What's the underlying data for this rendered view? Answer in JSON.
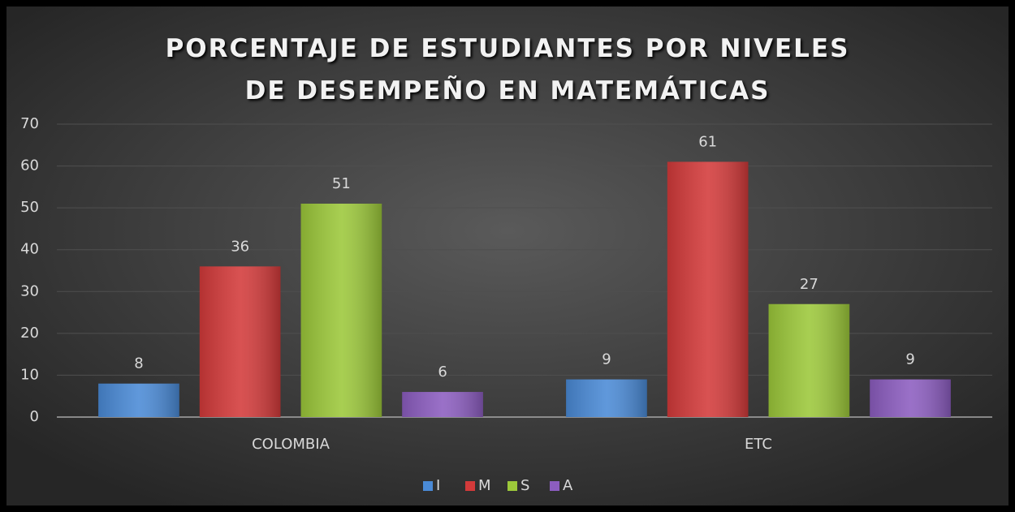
{
  "chart_data": {
    "type": "bar",
    "title": "PORCENTAJE DE ESTUDIANTES POR NIVELES DE DESEMPEÑO EN MATEMÁTICAS",
    "categories": [
      "COLOMBIA",
      "ETC"
    ],
    "series": [
      {
        "name": "I",
        "color": "#4a8ad6",
        "values": [
          8,
          9
        ]
      },
      {
        "name": "M",
        "color": "#d33a3a",
        "values": [
          36,
          61
        ]
      },
      {
        "name": "S",
        "color": "#9cc83a",
        "values": [
          51,
          27
        ]
      },
      {
        "name": "A",
        "color": "#8c5dc0",
        "values": [
          6,
          9
        ]
      }
    ],
    "ylim": [
      0,
      70
    ],
    "yticks": [
      0,
      10,
      20,
      30,
      40,
      50,
      60,
      70
    ],
    "grid": true,
    "legend": "bottom"
  }
}
